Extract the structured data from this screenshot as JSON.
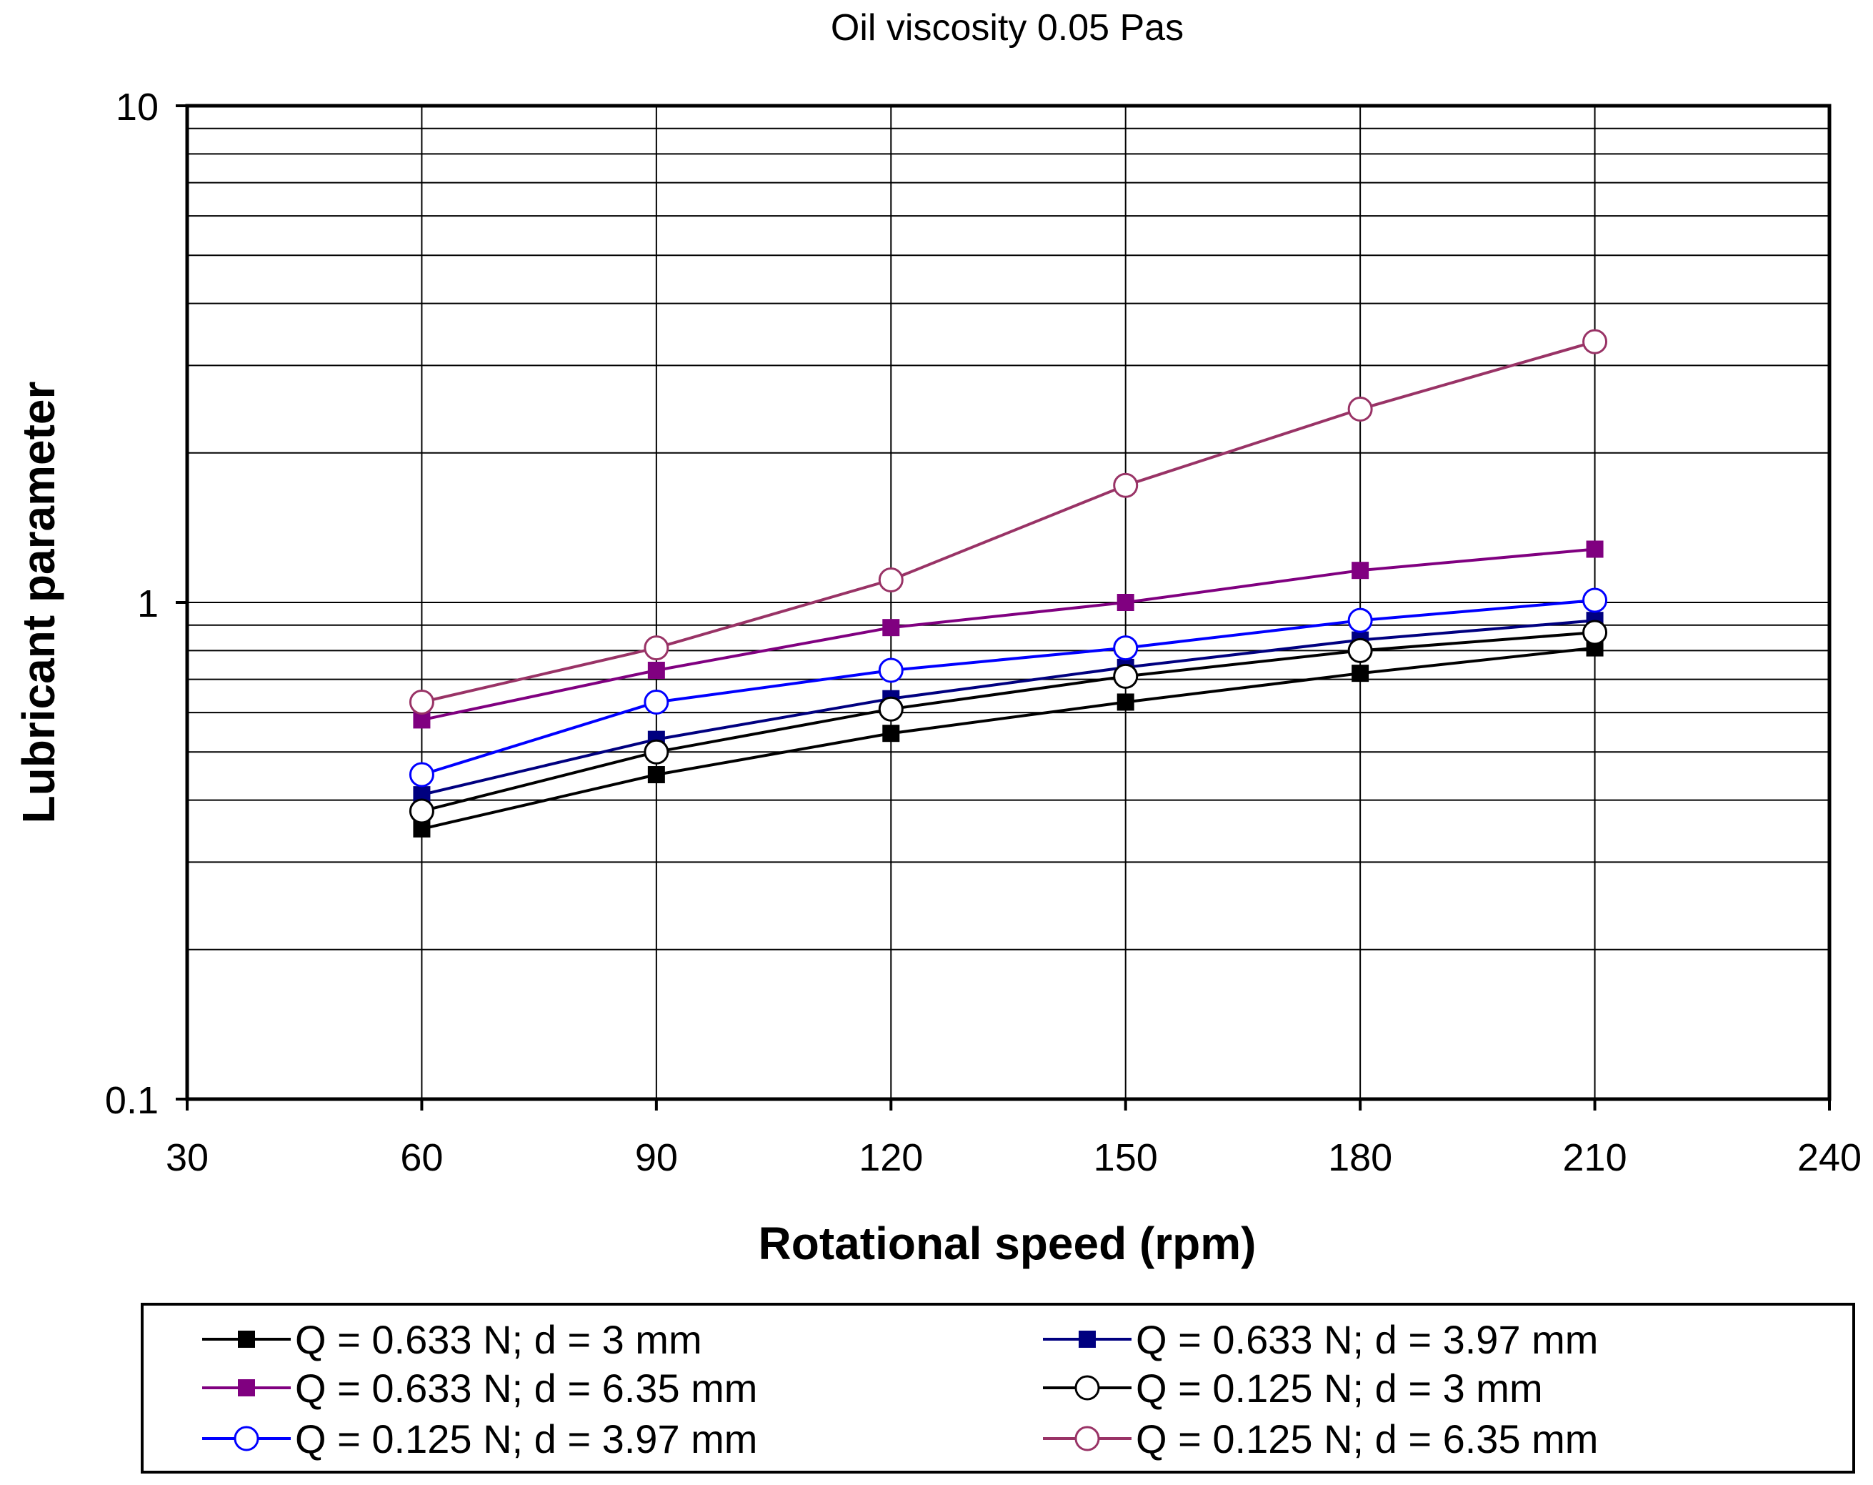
{
  "chart_data": {
    "type": "line",
    "title": "Oil viscosity 0.05 Pas",
    "xlabel": "Rotational speed (rpm)",
    "ylabel": "Lubricant parameter",
    "x_scale": "linear",
    "y_scale": "log",
    "xlim": [
      30,
      240
    ],
    "ylim": [
      0.1,
      10
    ],
    "x_ticks": [
      "30",
      "60",
      "90",
      "120",
      "150",
      "180",
      "210",
      "240"
    ],
    "x_tick_values": [
      30,
      60,
      90,
      120,
      150,
      180,
      210,
      240
    ],
    "y_ticks": [
      "0.1",
      "1",
      "10"
    ],
    "y_tick_values": [
      0.1,
      1,
      10
    ],
    "grid": {
      "x_major": true,
      "y_major": true,
      "y_minor": true
    },
    "legend_position": "bottom",
    "x": [
      60,
      90,
      120,
      150,
      180,
      210
    ],
    "series": [
      {
        "name": "Q = 0.633 N; d = 3 mm",
        "color": "#000000",
        "marker": "square-filled",
        "values": [
          0.35,
          0.45,
          0.545,
          0.63,
          0.72,
          0.81
        ]
      },
      {
        "name": "Q = 0.633 N; d = 3.97 mm",
        "color": "#000080",
        "marker": "square-filled",
        "values": [
          0.41,
          0.53,
          0.64,
          0.74,
          0.84,
          0.92
        ]
      },
      {
        "name": "Q = 0.633 N; d = 6.35 mm",
        "color": "#800080",
        "marker": "square-filled",
        "values": [
          0.58,
          0.73,
          0.89,
          1.0,
          1.16,
          1.28
        ]
      },
      {
        "name": "Q = 0.125 N; d = 3 mm",
        "color": "#000000",
        "marker": "circle-open",
        "values": [
          0.38,
          0.5,
          0.61,
          0.71,
          0.8,
          0.87
        ]
      },
      {
        "name": "Q = 0.125 N; d = 3.97 mm",
        "color": "#0000ff",
        "marker": "circle-open",
        "values": [
          0.45,
          0.63,
          0.73,
          0.81,
          0.92,
          1.01
        ]
      },
      {
        "name": "Q = 0.125 N; d = 6.35 mm",
        "color": "#993366",
        "marker": "circle-open",
        "values": [
          0.63,
          0.81,
          1.11,
          1.72,
          2.45,
          3.35
        ]
      }
    ]
  }
}
